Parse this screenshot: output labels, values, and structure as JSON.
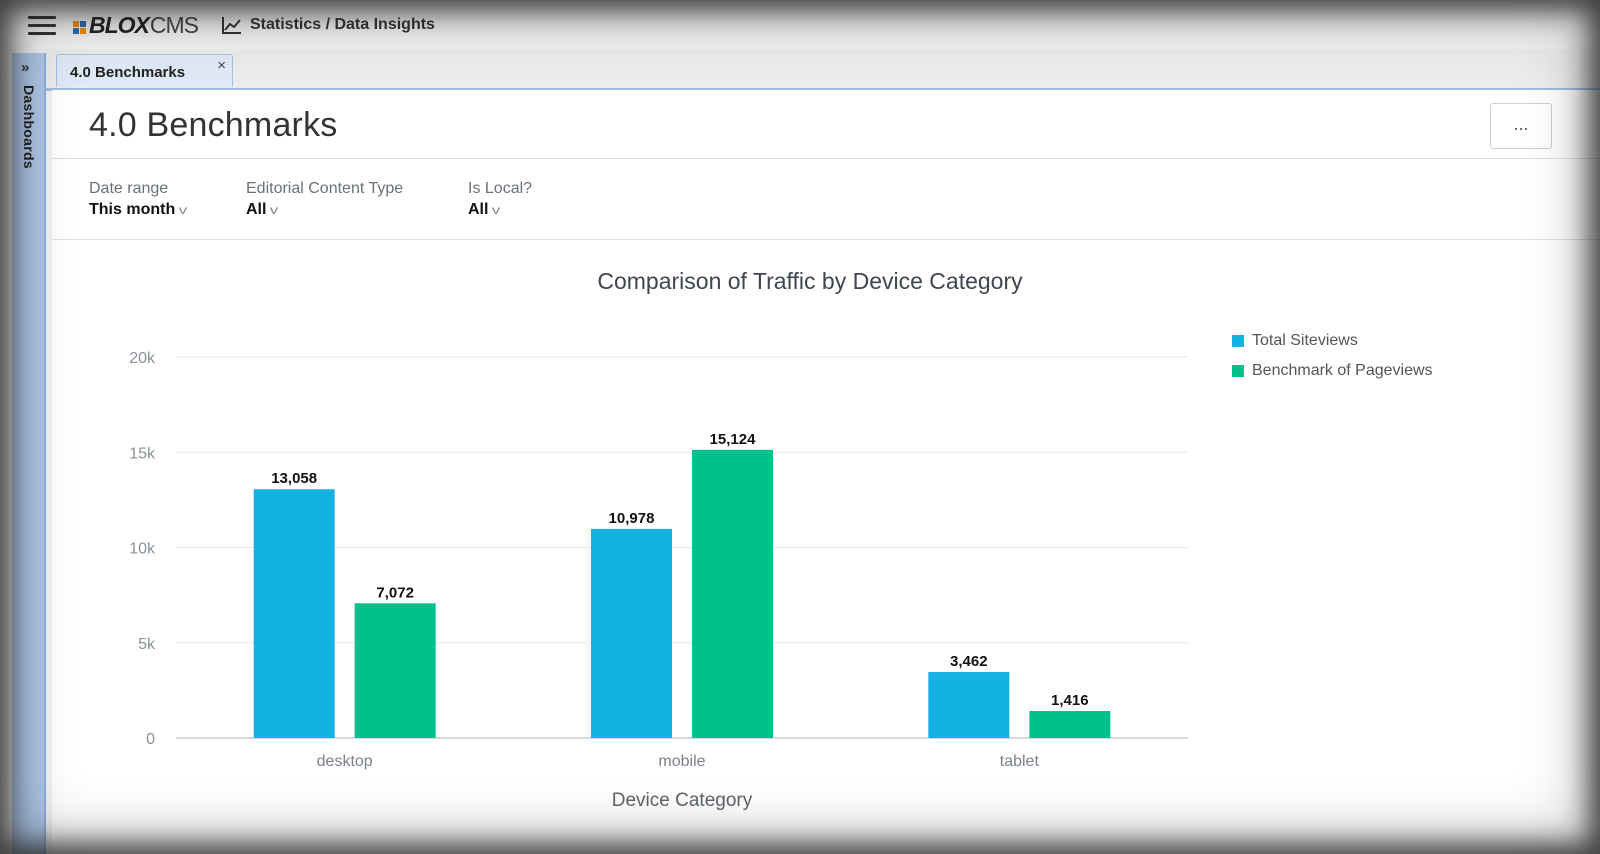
{
  "app": {
    "logo_bold": "BLOX",
    "logo_light": "CMS",
    "breadcrumb": "Statistics / Data Insights",
    "logo_colors": [
      "#f28c00",
      "#2b6cb0",
      "#f28c00",
      "#2b6cb0"
    ]
  },
  "sidebar": {
    "label": "Dashboards",
    "expand_glyph": "»"
  },
  "tabs": [
    {
      "label": "4.0 Benchmarks",
      "close": "×"
    }
  ],
  "page": {
    "title": "4.0 Benchmarks",
    "more_label": "..."
  },
  "filters": [
    {
      "label": "Date range",
      "value": "This month"
    },
    {
      "label": "Editorial Content Type",
      "value": "All"
    },
    {
      "label": "Is Local?",
      "value": "All"
    }
  ],
  "chart_data": {
    "type": "bar",
    "title": "Comparison of Traffic by Device Category",
    "xlabel": "Device Category",
    "ylabel": "",
    "categories": [
      "desktop",
      "mobile",
      "tablet"
    ],
    "series": [
      {
        "name": "Total Siteviews",
        "color": "#14b1e3",
        "values": [
          13058,
          10978,
          3462
        ],
        "labels": [
          "13,058",
          "10,978",
          "3,462"
        ]
      },
      {
        "name": "Benchmark of Pageviews",
        "color": "#00c08b",
        "values": [
          7072,
          15124,
          1416
        ],
        "labels": [
          "7,072",
          "15,124",
          "1,416"
        ]
      }
    ],
    "yticks": [
      0,
      5000,
      10000,
      15000,
      20000
    ],
    "ytick_labels": [
      "0",
      "5k",
      "10k",
      "15k",
      "20k"
    ],
    "ylim": [
      0,
      20000
    ],
    "grid": true,
    "legend": "top-right"
  }
}
